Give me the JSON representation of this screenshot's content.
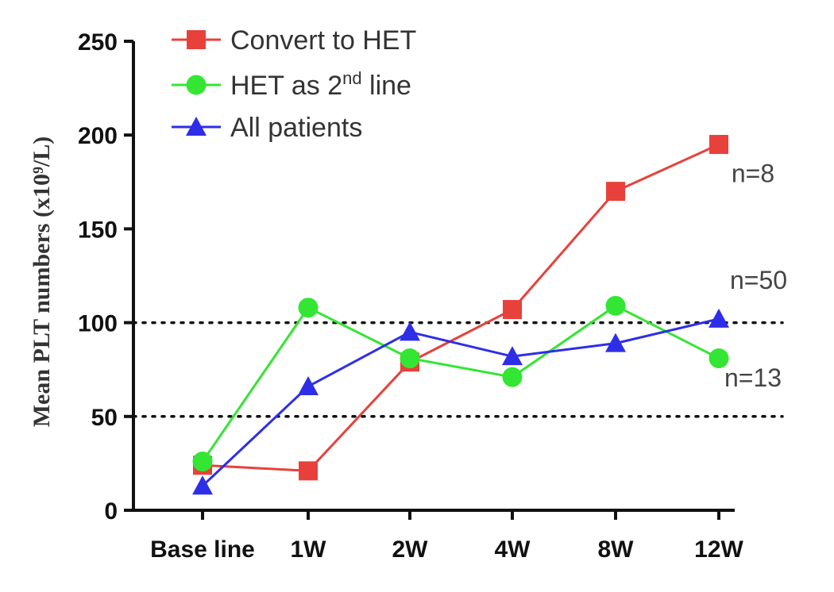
{
  "chart_data": {
    "type": "line",
    "title": "",
    "xlabel": "",
    "ylabel": "Mean PLT numbers (x10⁹/L)",
    "categories": [
      "Base line",
      "1W",
      "2W",
      "4W",
      "8W",
      "12W"
    ],
    "ylim": [
      0,
      250
    ],
    "yticks": [
      0,
      50,
      100,
      150,
      200,
      250
    ],
    "grid": false,
    "legend_position": "top-left",
    "reference_lines": [
      100,
      50
    ],
    "series": [
      {
        "name": "Convert to HET",
        "legend_sup": "",
        "legend_tail": "",
        "color": "#e8413b",
        "marker": "square",
        "values": [
          24,
          21,
          79,
          107,
          170,
          195
        ]
      },
      {
        "name": "HET as 2",
        "legend_sup": "nd",
        "legend_tail": " line",
        "color": "#33e633",
        "marker": "circle",
        "values": [
          26,
          108,
          81,
          71,
          109,
          81
        ]
      },
      {
        "name": "All patients",
        "legend_sup": "",
        "legend_tail": "",
        "color": "#2e2ee8",
        "marker": "triangle",
        "values": [
          13,
          66,
          95,
          82,
          89,
          102
        ]
      }
    ],
    "annotations": [
      {
        "text": "n=8",
        "at_category": "12W",
        "at_value": 175
      },
      {
        "text": "n=50",
        "at_category": "12W",
        "at_value": 118
      },
      {
        "text": "n=13",
        "at_category": "12W",
        "at_value": 66
      }
    ]
  }
}
